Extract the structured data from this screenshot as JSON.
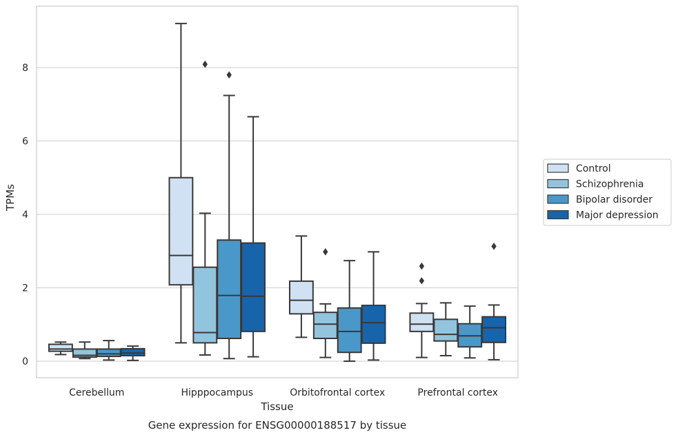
{
  "chart_data": {
    "type": "box",
    "caption": "Gene expression for ENSG00000188517 by tissue",
    "xlabel": "Tissue",
    "ylabel": "TPMs",
    "ylim": [
      -0.45,
      9.7
    ],
    "yticks": [
      0,
      2,
      4,
      6,
      8
    ],
    "grid": "horizontal",
    "legend_position": "right",
    "categories": [
      "Cerebellum",
      "Hipppocampus",
      "Orbitofrontal cortex",
      "Prefrontal cortex"
    ],
    "series": [
      {
        "name": "Control",
        "color": "#cfe1f2",
        "boxes": [
          {
            "min": 0.18,
            "q1": 0.27,
            "median": 0.33,
            "q3": 0.46,
            "max": 0.52,
            "outliers": []
          },
          {
            "min": 0.5,
            "q1": 2.08,
            "median": 2.88,
            "q3": 5.0,
            "max": 9.2,
            "outliers": []
          },
          {
            "min": 0.65,
            "q1": 1.29,
            "median": 1.66,
            "q3": 2.18,
            "max": 3.41,
            "outliers": []
          },
          {
            "min": 0.1,
            "q1": 0.81,
            "median": 1.01,
            "q3": 1.31,
            "max": 1.57,
            "outliers": [
              2.19,
              2.59
            ]
          }
        ]
      },
      {
        "name": "Schizophrenia",
        "color": "#93c4de",
        "boxes": [
          {
            "min": 0.07,
            "q1": 0.11,
            "median": 0.16,
            "q3": 0.33,
            "max": 0.52,
            "outliers": []
          },
          {
            "min": 0.17,
            "q1": 0.5,
            "median": 0.78,
            "q3": 2.56,
            "max": 4.03,
            "outliers": [
              8.09
            ]
          },
          {
            "min": 0.1,
            "q1": 0.62,
            "median": 1.01,
            "q3": 1.33,
            "max": 1.56,
            "outliers": [
              2.98
            ]
          },
          {
            "min": 0.15,
            "q1": 0.55,
            "median": 0.73,
            "q3": 1.14,
            "max": 1.59,
            "outliers": []
          }
        ]
      },
      {
        "name": "Bipolar disorder",
        "color": "#4a98c9",
        "boxes": [
          {
            "min": 0.03,
            "q1": 0.13,
            "median": 0.2,
            "q3": 0.33,
            "max": 0.56,
            "outliers": []
          },
          {
            "min": 0.07,
            "q1": 0.62,
            "median": 1.79,
            "q3": 3.3,
            "max": 7.24,
            "outliers": [
              7.8
            ]
          },
          {
            "min": 0.0,
            "q1": 0.24,
            "median": 0.81,
            "q3": 1.45,
            "max": 2.74,
            "outliers": []
          },
          {
            "min": 0.09,
            "q1": 0.39,
            "median": 0.69,
            "q3": 1.02,
            "max": 1.5,
            "outliers": []
          }
        ]
      },
      {
        "name": "Major depression",
        "color": "#1764ab",
        "boxes": [
          {
            "min": 0.02,
            "q1": 0.15,
            "median": 0.22,
            "q3": 0.34,
            "max": 0.41,
            "outliers": []
          },
          {
            "min": 0.12,
            "q1": 0.81,
            "median": 1.77,
            "q3": 3.22,
            "max": 6.66,
            "outliers": []
          },
          {
            "min": 0.03,
            "q1": 0.49,
            "median": 1.05,
            "q3": 1.52,
            "max": 2.98,
            "outliers": []
          },
          {
            "min": 0.04,
            "q1": 0.51,
            "median": 0.91,
            "q3": 1.21,
            "max": 1.53,
            "outliers": [
              3.13
            ]
          }
        ]
      }
    ]
  }
}
